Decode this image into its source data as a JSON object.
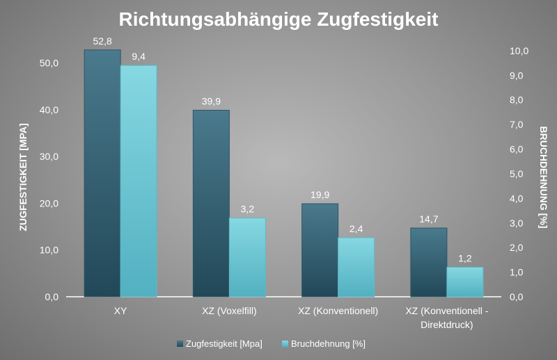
{
  "chart_data": {
    "type": "bar",
    "title": "Richtungsabhängige Zugfestigkeit",
    "categories": [
      [
        "XY"
      ],
      [
        "XZ (Voxelfill)"
      ],
      [
        "XZ (Konventionell)"
      ],
      [
        "XZ (Konventionell -",
        "Direktdruck)"
      ]
    ],
    "series": [
      {
        "name": "Zugfestigkeit [Mpa]",
        "axis": "left",
        "color": "#3e6a7c",
        "values": [
          52.8,
          39.9,
          19.9,
          14.7
        ],
        "labels": [
          "52,8",
          "39,9",
          "19,9",
          "14,7"
        ]
      },
      {
        "name": "Bruchdehnung [%]",
        "axis": "right",
        "color": "#72c8d4",
        "values": [
          9.4,
          3.2,
          2.4,
          1.2
        ],
        "labels": [
          "9,4",
          "3,2",
          "2,4",
          "1,2"
        ]
      }
    ],
    "y_left": {
      "label": "ZUGFESTIGKEIT [MPA]",
      "ylim": [
        0,
        55
      ],
      "ticks": [
        0,
        10,
        20,
        30,
        40,
        50
      ],
      "tick_labels": [
        "0,0",
        "10,0",
        "20,0",
        "30,0",
        "40,0",
        "50,0"
      ]
    },
    "y_right": {
      "label": "BRUCHDEHNUNG [%]",
      "ylim": [
        0,
        10.45
      ],
      "ticks": [
        0,
        1,
        2,
        3,
        4,
        5,
        6,
        7,
        8,
        9,
        10
      ],
      "tick_labels": [
        "0,0",
        "1,0",
        "2,0",
        "3,0",
        "4,0",
        "5,0",
        "6,0",
        "7,0",
        "8,0",
        "9,0",
        "10,0"
      ]
    },
    "grid": false,
    "legend_position": "bottom"
  }
}
